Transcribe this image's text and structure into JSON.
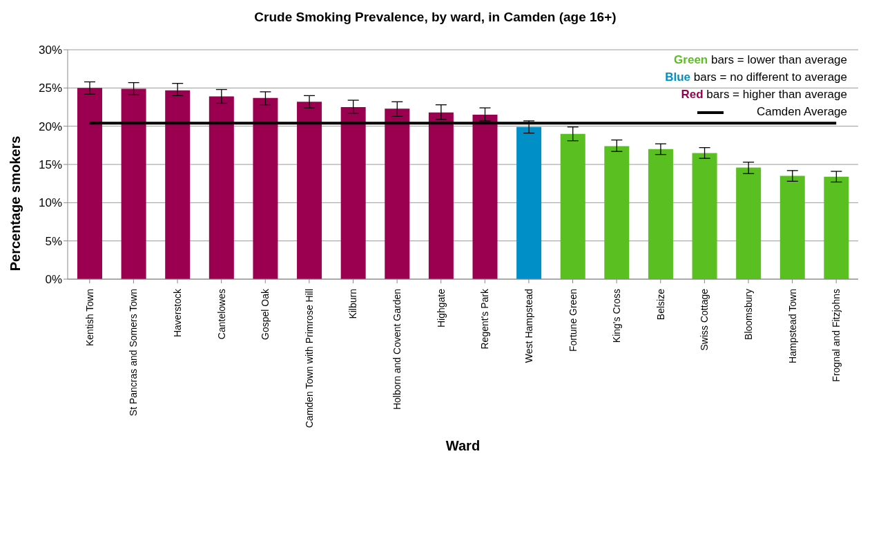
{
  "chart_data": {
    "type": "bar",
    "title": "Crude Smoking Prevalence, by ward, in Camden (age 16+)",
    "xlabel": "Ward",
    "ylabel": "Percentage smokers",
    "categories": [
      "Kentish Town",
      "St Pancras and Somers Town",
      "Haverstock",
      "Cantelowes",
      "Gospel Oak",
      "Camden Town with Primrose Hill",
      "Kilburn",
      "Holborn and Covent Garden",
      "Highgate",
      "Regent's Park",
      "West Hampstead",
      "Fortune Green",
      "King's Cross",
      "Belsize",
      "Swiss Cottage",
      "Bloomsbury",
      "Hampstead Town",
      "Frognal and Fitzjohns"
    ],
    "stacked": true,
    "series": [
      {
        "name": "Green bars = lower than average",
        "color": "#5abf20",
        "values": [
          null,
          null,
          null,
          null,
          null,
          null,
          null,
          null,
          null,
          null,
          null,
          19.0,
          17.4,
          17.0,
          16.5,
          14.6,
          13.5,
          13.4
        ],
        "errors": [
          null,
          null,
          null,
          null,
          null,
          null,
          null,
          null,
          null,
          null,
          null,
          [
            18.1,
            19.9
          ],
          [
            16.7,
            18.2
          ],
          [
            16.3,
            17.7
          ],
          [
            15.8,
            17.2
          ],
          [
            13.8,
            15.3
          ],
          [
            12.8,
            14.2
          ],
          [
            12.7,
            14.1
          ]
        ]
      },
      {
        "name": "Blue bars = no different to average",
        "color": "#0090c8",
        "values": [
          null,
          null,
          null,
          null,
          null,
          null,
          null,
          null,
          null,
          null,
          19.9,
          null,
          null,
          null,
          null,
          null,
          null,
          null
        ],
        "errors": [
          null,
          null,
          null,
          null,
          null,
          null,
          null,
          null,
          null,
          null,
          [
            19.1,
            20.7
          ],
          null,
          null,
          null,
          null,
          null,
          null,
          null
        ]
      },
      {
        "name": "Red bars = higher than average",
        "color": "#9b0050",
        "values": [
          25.0,
          24.9,
          24.7,
          23.9,
          23.7,
          23.2,
          22.5,
          22.3,
          21.8,
          21.5,
          null,
          null,
          null,
          null,
          null,
          null,
          null,
          null
        ],
        "errors": [
          [
            24.2,
            25.8
          ],
          [
            24.1,
            25.7
          ],
          [
            24.0,
            25.6
          ],
          [
            23.0,
            24.8
          ],
          [
            22.8,
            24.5
          ],
          [
            22.4,
            24.0
          ],
          [
            21.7,
            23.4
          ],
          [
            21.3,
            23.2
          ],
          [
            20.9,
            22.8
          ],
          [
            20.7,
            22.4
          ],
          null,
          null,
          null,
          null,
          null,
          null,
          null,
          null
        ]
      }
    ],
    "ref_lines": [
      {
        "axis": "y",
        "value": 20.4,
        "label": "Camden Average",
        "color": "#000000"
      }
    ],
    "ylim": [
      0,
      30
    ],
    "yticks": [
      {
        "value": 0,
        "label": "0%"
      },
      {
        "value": 5,
        "label": "5%"
      },
      {
        "value": 10,
        "label": "10%"
      },
      {
        "value": 15,
        "label": "15%"
      },
      {
        "value": 20,
        "label": "20%"
      },
      {
        "value": 25,
        "label": "25%"
      },
      {
        "value": 30,
        "label": "30%"
      }
    ],
    "grid": "y",
    "legend": "top right"
  }
}
